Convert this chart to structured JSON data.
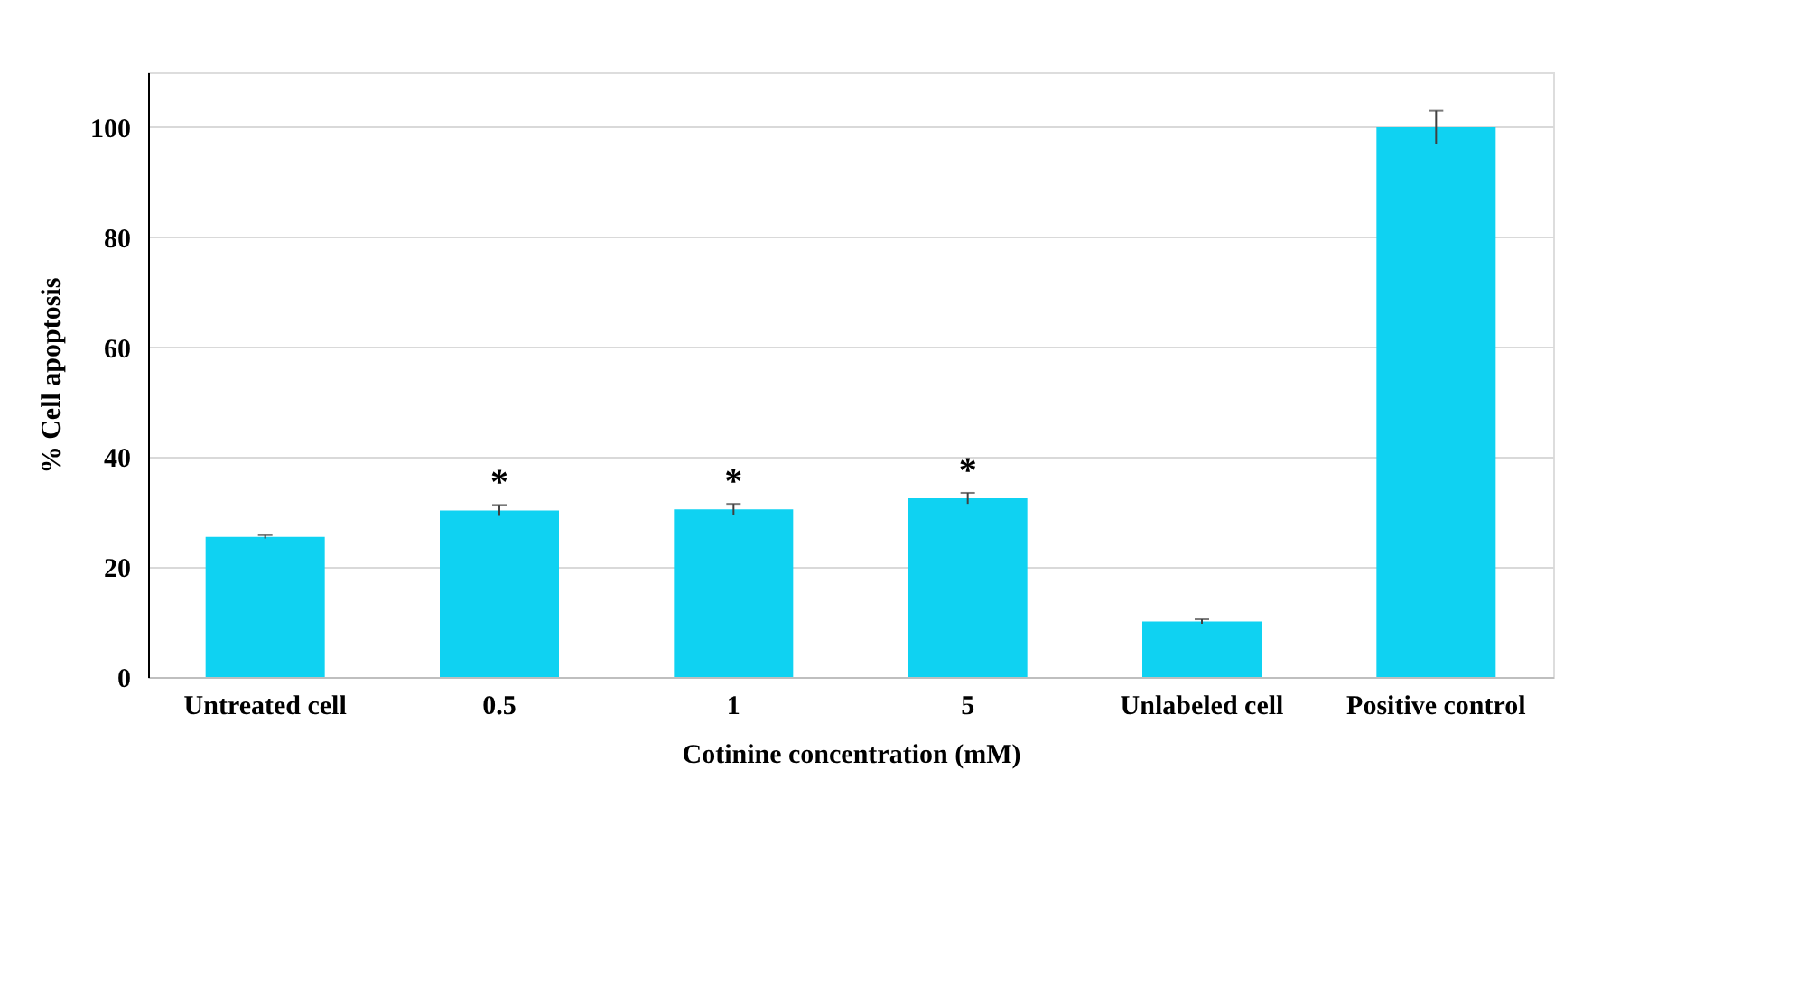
{
  "chart_data": {
    "type": "bar",
    "xlabel": "Cotinine concentration (mM)",
    "ylabel": "% Cell apoptosis",
    "categories": [
      "Untreated cell",
      "0.5",
      "1",
      "5",
      "Unlabeled cell",
      "Positive control"
    ],
    "values": [
      25.5,
      30.3,
      30.5,
      32.5,
      10.1,
      100
    ],
    "errors": [
      0.3,
      1,
      1,
      1,
      0.4,
      3
    ],
    "color": "#0fd2f2",
    "ylim": [
      0,
      110
    ],
    "yticks": [
      0,
      20,
      40,
      60,
      80,
      100
    ],
    "grid": "y",
    "annotations": [
      {
        "text": "*",
        "x": "0.5",
        "y": 31.3
      },
      {
        "text": "*",
        "x": "1",
        "y": 31.5
      },
      {
        "text": "*",
        "x": "5",
        "y": 33.5
      }
    ]
  }
}
